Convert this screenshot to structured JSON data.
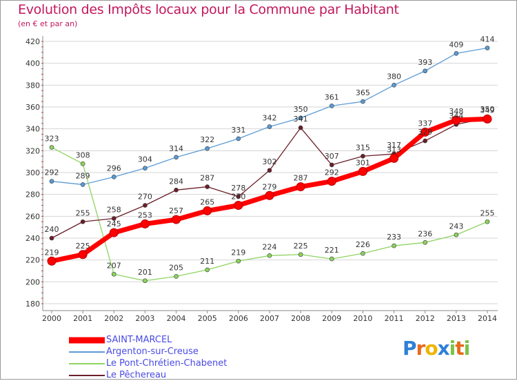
{
  "header": {
    "title": "Evolution des Impôts locaux pour la Commune par Habitant",
    "subtitle": "(en € et par an)"
  },
  "chart_data": {
    "type": "line",
    "title": "Evolution des Impôts locaux pour la Commune par Habitant",
    "subtitle": "(en € et par an)",
    "xlabel": "",
    "ylabel": "",
    "x": [
      "2000",
      "2001",
      "2002",
      "2003",
      "2004",
      "2005",
      "2006",
      "2007",
      "2008",
      "2009",
      "2010",
      "2011",
      "2012",
      "2013",
      "2014"
    ],
    "ylim": [
      180,
      420
    ],
    "yticks": [
      180,
      200,
      220,
      240,
      260,
      280,
      300,
      320,
      340,
      360,
      380,
      400,
      420
    ],
    "grid": "horizontal",
    "legend_position": "bottom-left",
    "series": [
      {
        "name": "SAINT-MARCEL",
        "color": "#ff0000",
        "values": [
          219,
          225,
          245,
          253,
          257,
          265,
          270,
          279,
          287,
          292,
          301,
          313,
          337,
          348,
          349
        ]
      },
      {
        "name": "Argenton-sur-Creuse",
        "color": "#5b9bd5",
        "values": [
          292,
          289,
          296,
          304,
          314,
          322,
          331,
          342,
          350,
          361,
          365,
          380,
          393,
          409,
          414
        ]
      },
      {
        "name": "Le Pont-Chrétien-Chabenet",
        "color": "#8dd35f",
        "values": [
          323,
          308,
          207,
          201,
          205,
          211,
          219,
          224,
          225,
          221,
          226,
          233,
          236,
          243,
          255
        ]
      },
      {
        "name": "Le Pêchereau",
        "color": "#6b1f2a",
        "values": [
          240,
          255,
          258,
          270,
          284,
          287,
          278,
          302,
          341,
          307,
          315,
          317,
          329,
          344,
          350
        ]
      }
    ]
  },
  "logo": {
    "letters": [
      "P",
      "r",
      "o",
      "x",
      "i",
      "t",
      "i"
    ],
    "colors": [
      "#2e7fd8",
      "#e86a1c",
      "#f0b400",
      "#2e7fd8",
      "#7cc243",
      "#e86a1c",
      "#7cc243"
    ]
  }
}
